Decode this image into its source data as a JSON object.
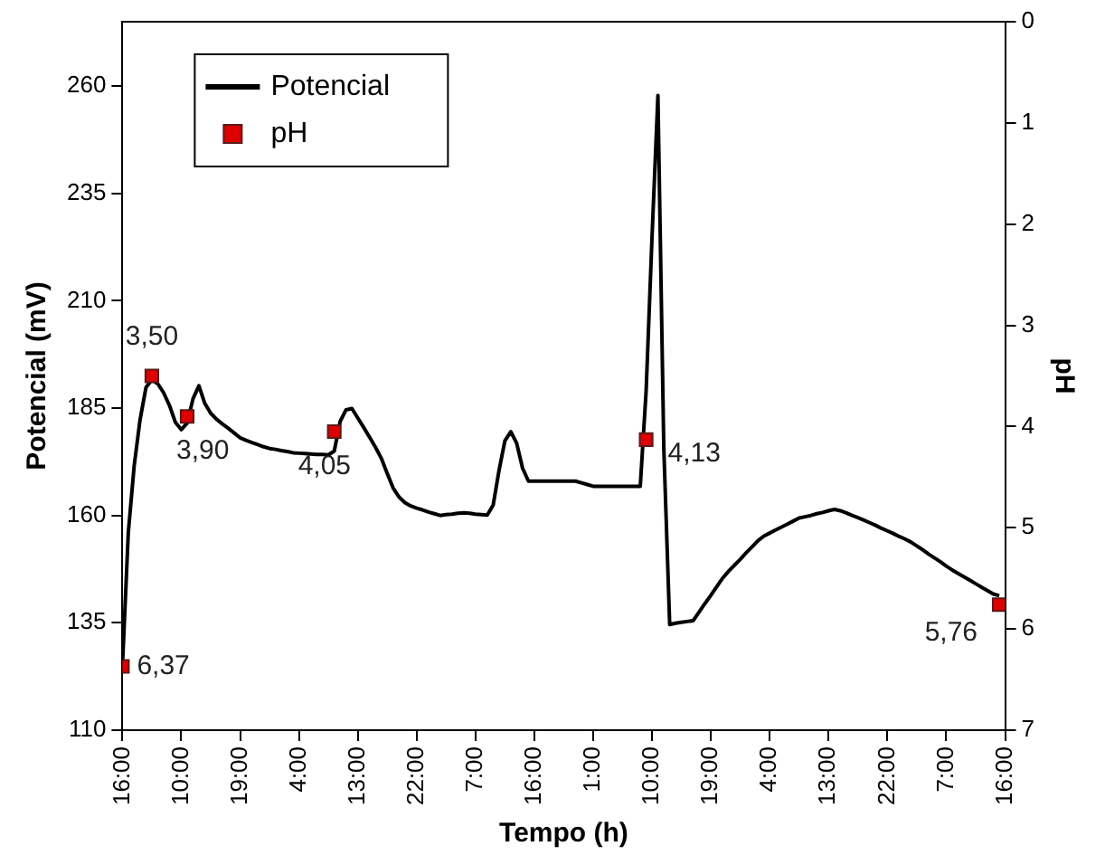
{
  "chart_data": {
    "type": "line",
    "xlabel": "Tempo (h)",
    "ylabel": "Potencial (mV)",
    "y2label": "pH",
    "categories": [
      "16:00",
      null,
      null,
      null,
      null,
      null,
      null,
      null,
      null,
      null,
      "10:00",
      null,
      null,
      null,
      null,
      null,
      null,
      null,
      null,
      null,
      "19:00",
      null,
      null,
      null,
      null,
      null,
      null,
      null,
      null,
      null,
      "4:00",
      null,
      null,
      null,
      null,
      null,
      null,
      null,
      null,
      null,
      "13:00",
      null,
      null,
      null,
      null,
      null,
      null,
      null,
      null,
      null,
      "22:00",
      null,
      null,
      null,
      null,
      null,
      null,
      null,
      null,
      null,
      "7:00",
      null,
      null,
      null,
      null,
      null,
      null,
      null,
      null,
      null,
      "16:00",
      null,
      null,
      null,
      null,
      null,
      null,
      null,
      null,
      null,
      "1:00",
      null,
      null,
      null,
      null,
      null,
      null,
      null,
      null,
      null,
      "10:00",
      null,
      null,
      null,
      null,
      null,
      null,
      null,
      null,
      null,
      "19:00",
      null,
      null,
      null,
      null,
      null,
      null,
      null,
      null,
      null,
      "4:00",
      null,
      null,
      null,
      null,
      null,
      null,
      null,
      null,
      null,
      "13:00",
      null,
      null,
      null,
      null,
      null,
      null,
      null,
      null,
      null,
      "22:00",
      null,
      null,
      null,
      null,
      null,
      null,
      null,
      null,
      null,
      "7:00",
      null,
      null,
      null,
      null,
      null,
      null,
      null,
      null,
      null,
      "16:00"
    ],
    "ylim": [
      110,
      275
    ],
    "yticks": [
      110,
      135,
      160,
      185,
      210,
      235,
      260
    ],
    "y2lim": [
      7,
      0
    ],
    "y2ticks": [
      0,
      1,
      2,
      3,
      4,
      5,
      6,
      7
    ],
    "grid": false,
    "legend": "top left",
    "series": [
      {
        "name": "Potencial",
        "type": "line",
        "color": "#000000",
        "marker": "none",
        "line_style": "solid",
        "values": [
          124.8,
          156,
          171.6,
          182.3,
          189.8,
          191.6,
          190.7,
          188.6,
          185.6,
          181.7,
          180,
          181.5,
          187.2,
          190.2,
          186.1,
          183.8,
          182.4,
          181.3,
          180.3,
          179.2,
          178.1,
          177.5,
          177,
          176.5,
          176,
          175.6,
          175.4,
          175.1,
          174.9,
          174.6,
          174.5,
          174.4,
          174.3,
          174.2,
          174.2,
          174.1,
          175,
          181.9,
          184.6,
          184.9,
          182.7,
          180.5,
          178.2,
          175.9,
          173.3,
          169.8,
          166.4,
          164.3,
          163,
          162.2,
          161.7,
          161.3,
          160.8,
          160.4,
          160,
          160.2,
          160.3,
          160.5,
          160.6,
          160.5,
          160.3,
          160.2,
          160.1,
          162.4,
          170.5,
          177.4,
          179.5,
          176.8,
          171,
          168,
          168,
          168,
          168,
          168,
          168,
          168,
          168,
          168,
          167.6,
          167.2,
          166.8,
          166.8,
          166.8,
          166.8,
          166.8,
          166.8,
          166.8,
          166.8,
          166.8,
          189.1,
          224.9,
          257.8,
          175.7,
          134.6,
          134.9,
          135.1,
          135.3,
          135.5,
          137.5,
          139.5,
          141.4,
          143.4,
          145.4,
          147,
          148.4,
          149.8,
          151.3,
          152.7,
          154.1,
          155.2,
          155.9,
          156.6,
          157.3,
          158,
          158.7,
          159.4,
          159.7,
          160,
          160.4,
          160.7,
          161.1,
          161.4,
          161.1,
          160.6,
          160,
          159.5,
          158.9,
          158.3,
          157.7,
          157,
          156.4,
          155.8,
          155.1,
          154.5,
          153.8,
          152.9,
          152,
          151,
          150.1,
          149.2,
          148.2,
          147.3,
          146.5,
          145.7,
          144.9,
          144.1,
          143.3,
          142.5,
          141.7,
          141.3,
          null
        ]
      },
      {
        "name": "pH",
        "type": "scatter",
        "axis": "y2",
        "color": "#dd0000",
        "marker": "square",
        "values": [
          6.37,
          null,
          null,
          null,
          null,
          3.5,
          null,
          null,
          null,
          null,
          null,
          3.9,
          null,
          null,
          null,
          null,
          null,
          null,
          null,
          null,
          null,
          null,
          null,
          null,
          null,
          null,
          null,
          null,
          null,
          null,
          null,
          null,
          null,
          null,
          null,
          null,
          4.05,
          null,
          null,
          null,
          null,
          null,
          null,
          null,
          null,
          null,
          null,
          null,
          null,
          null,
          null,
          null,
          null,
          null,
          null,
          null,
          null,
          null,
          null,
          null,
          null,
          null,
          null,
          null,
          null,
          null,
          null,
          null,
          null,
          null,
          null,
          null,
          null,
          null,
          null,
          null,
          null,
          null,
          null,
          null,
          null,
          null,
          null,
          null,
          null,
          null,
          null,
          null,
          null,
          4.13,
          null,
          null,
          null,
          null,
          null,
          null,
          null,
          null,
          null,
          null,
          null,
          null,
          null,
          null,
          null,
          null,
          null,
          null,
          null,
          null,
          null,
          null,
          null,
          null,
          null,
          null,
          null,
          null,
          null,
          null,
          null,
          null,
          null,
          null,
          null,
          null,
          null,
          null,
          null,
          null,
          null,
          null,
          null,
          null,
          null,
          null,
          null,
          null,
          null,
          null,
          null,
          null,
          null,
          null,
          null,
          null,
          null,
          null,
          null,
          5.76,
          null
        ],
        "value_labels": [
          "6,37",
          null,
          null,
          null,
          null,
          "3,50",
          null,
          null,
          null,
          null,
          null,
          "3,90",
          null,
          null,
          null,
          null,
          null,
          null,
          null,
          null,
          null,
          null,
          null,
          null,
          null,
          null,
          null,
          null,
          null,
          null,
          null,
          null,
          null,
          null,
          null,
          null,
          "4,05",
          null,
          null,
          null,
          null,
          null,
          null,
          null,
          null,
          null,
          null,
          null,
          null,
          null,
          null,
          null,
          null,
          null,
          null,
          null,
          null,
          null,
          null,
          null,
          null,
          null,
          null,
          null,
          null,
          null,
          null,
          null,
          null,
          null,
          null,
          null,
          null,
          null,
          null,
          null,
          null,
          null,
          null,
          null,
          null,
          null,
          null,
          null,
          null,
          null,
          null,
          null,
          null,
          "4,13",
          null,
          null,
          null,
          null,
          null,
          null,
          null,
          null,
          null,
          null,
          null,
          null,
          null,
          null,
          null,
          null,
          null,
          null,
          null,
          null,
          null,
          null,
          null,
          null,
          null,
          null,
          null,
          null,
          null,
          null,
          null,
          null,
          null,
          null,
          null,
          null,
          null,
          null,
          null,
          null,
          null,
          null,
          null,
          null,
          null,
          null,
          null,
          null,
          null,
          null,
          null,
          null,
          null,
          null,
          null,
          null,
          null,
          null,
          null,
          "5,76",
          null
        ]
      }
    ]
  }
}
